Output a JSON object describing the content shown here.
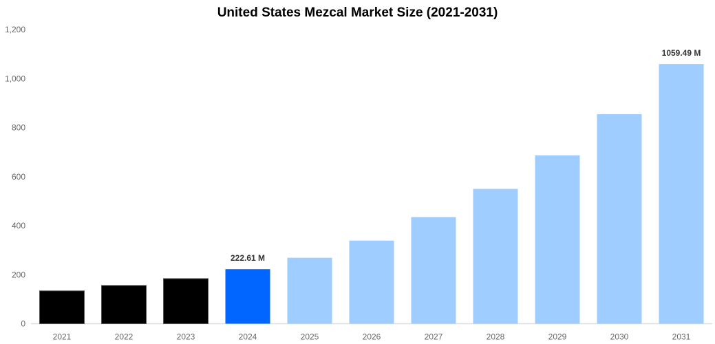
{
  "chart_data": {
    "type": "bar",
    "title": "United States Mezcal Market Size (2021-2031)",
    "xlabel": "",
    "ylabel": "",
    "categories": [
      "2021",
      "2022",
      "2023",
      "2024",
      "2025",
      "2026",
      "2027",
      "2028",
      "2029",
      "2030",
      "2031"
    ],
    "values": [
      134,
      156,
      184,
      222.61,
      269,
      339,
      435,
      550,
      687,
      855,
      1059.49
    ],
    "colors": [
      "#000000",
      "#000000",
      "#000000",
      "#0066ff",
      "#a0cdff",
      "#a0cdff",
      "#a0cdff",
      "#a0cdff",
      "#a0cdff",
      "#a0cdff",
      "#a0cdff"
    ],
    "data_labels": {
      "3": "222.61 M",
      "10": "1059.49 M"
    },
    "ylim": [
      0,
      1200
    ],
    "yticks": [
      0,
      200,
      400,
      600,
      800,
      1000,
      1200
    ],
    "ytick_labels": [
      "0",
      "200",
      "400",
      "600",
      "800",
      "1,000",
      "1,200"
    ],
    "grid": false,
    "legend": "none"
  }
}
